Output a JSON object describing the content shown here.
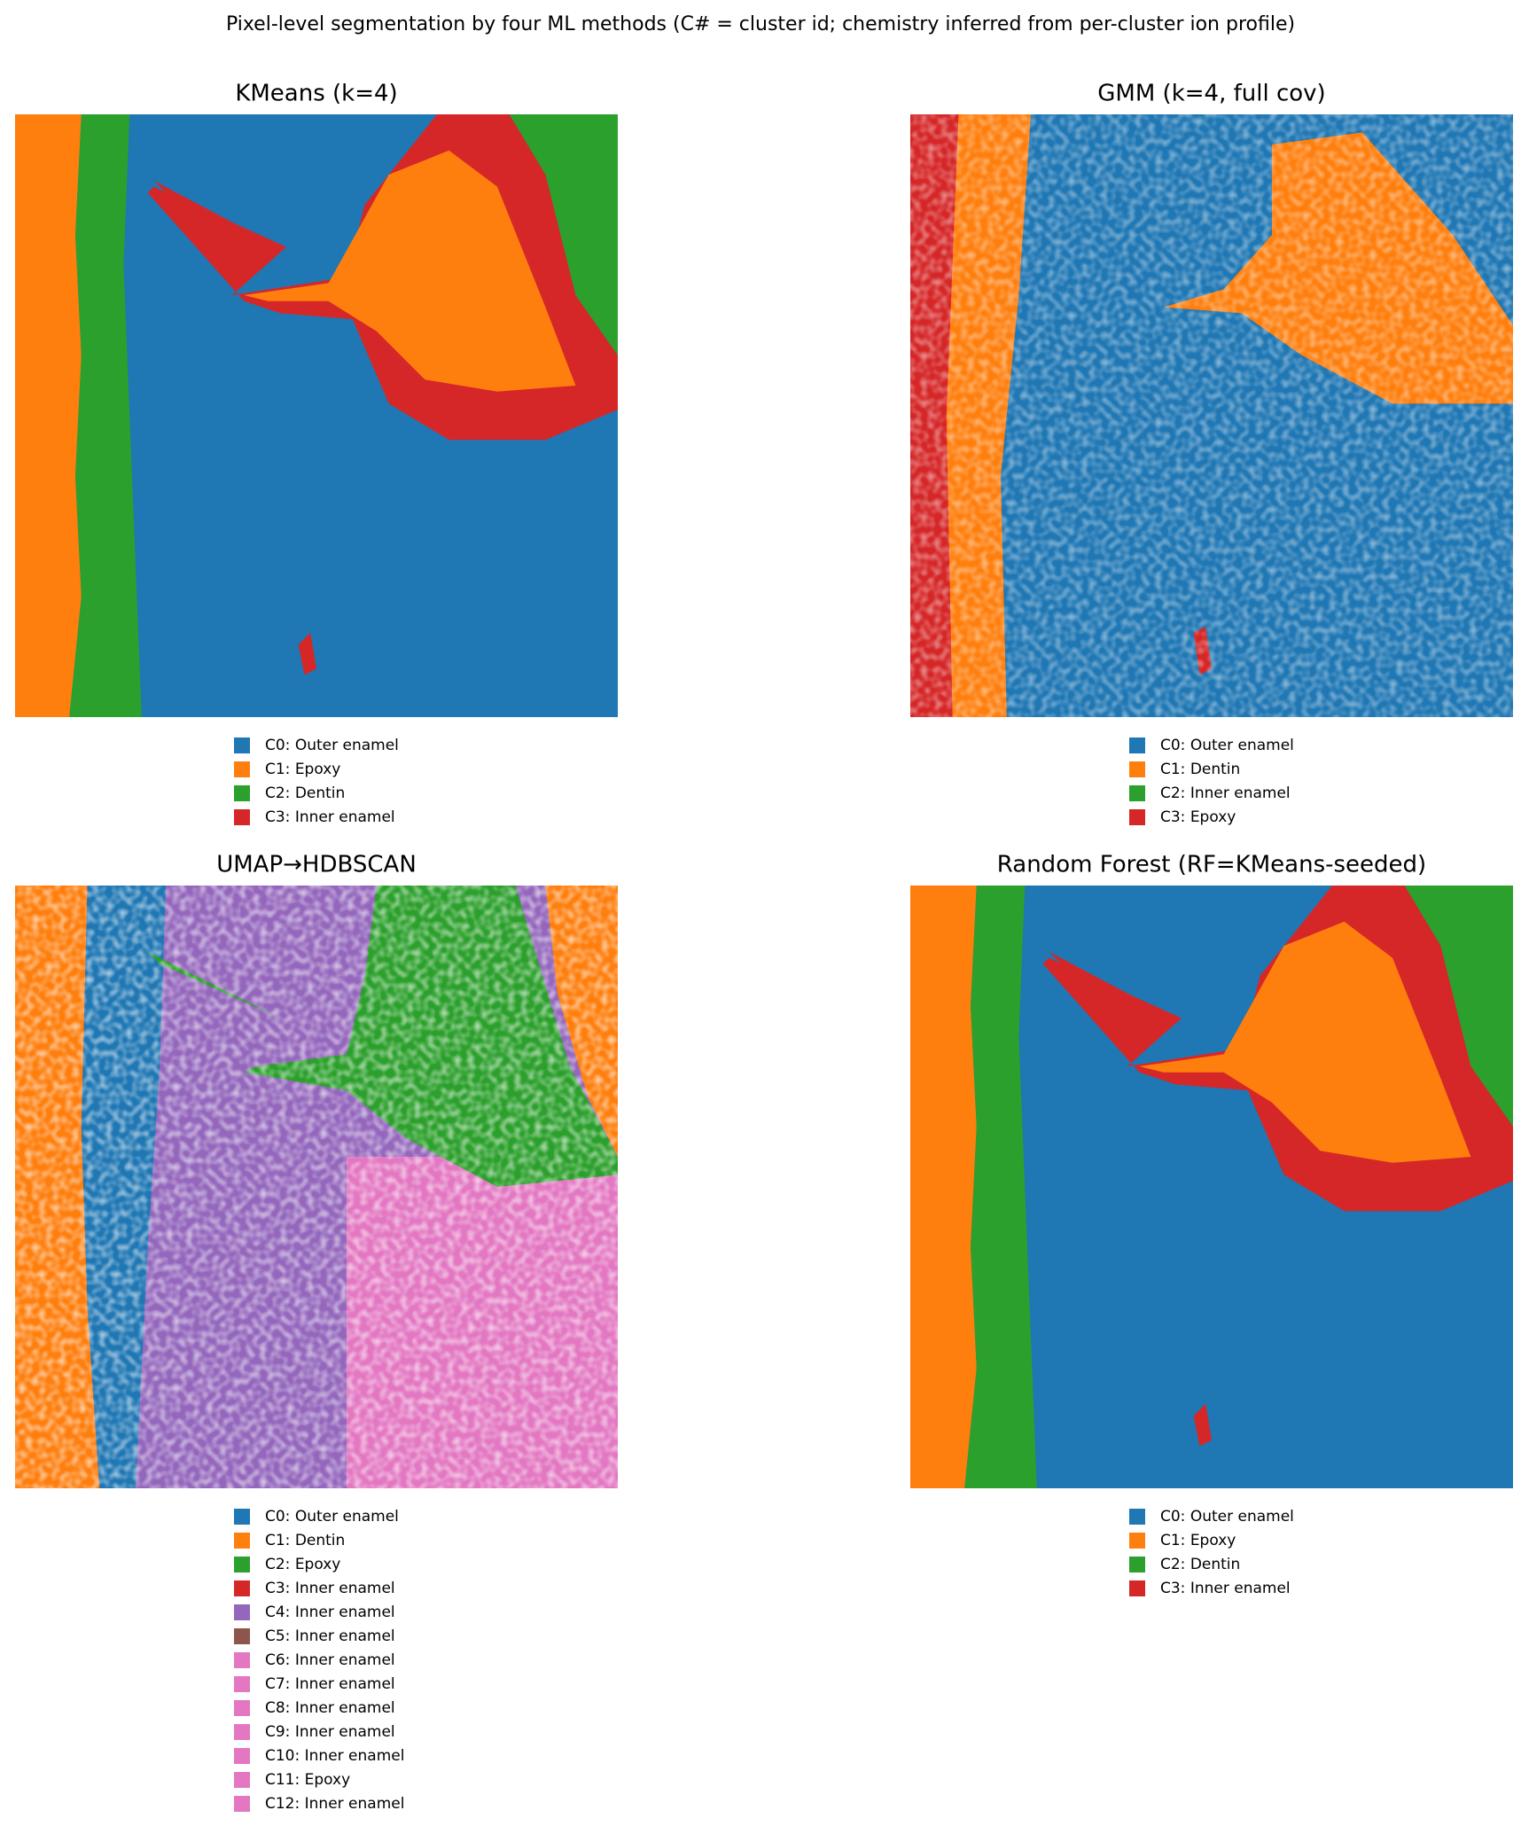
{
  "title": "Pixel-level segmentation by four ML methods (C# = cluster id; chemistry inferred from per-cluster ion profile)",
  "panels": [
    {
      "title": "KMeans (k=4)",
      "legend": [
        {
          "label": "C0: Outer enamel",
          "color": "#1f77b4"
        },
        {
          "label": "C1: Epoxy",
          "color": "#ff7f0e"
        },
        {
          "label": "C2: Dentin",
          "color": "#2ca02c"
        },
        {
          "label": "C3: Inner enamel",
          "color": "#d62728"
        }
      ]
    },
    {
      "title": "GMM (k=4, full cov)",
      "legend": [
        {
          "label": "C0: Outer enamel",
          "color": "#1f77b4"
        },
        {
          "label": "C1: Dentin",
          "color": "#ff7f0e"
        },
        {
          "label": "C2: Inner enamel",
          "color": "#2ca02c"
        },
        {
          "label": "C3: Epoxy",
          "color": "#d62728"
        }
      ]
    },
    {
      "title": "UMAP→HDBSCAN",
      "legend": [
        {
          "label": "C0: Outer enamel",
          "color": "#1f77b4"
        },
        {
          "label": "C1: Dentin",
          "color": "#ff7f0e"
        },
        {
          "label": "C2: Epoxy",
          "color": "#2ca02c"
        },
        {
          "label": "C3: Inner enamel",
          "color": "#d62728"
        },
        {
          "label": "C4: Inner enamel",
          "color": "#9467bd"
        },
        {
          "label": "C5: Inner enamel",
          "color": "#8c564b"
        },
        {
          "label": "C6: Inner enamel",
          "color": "#e377c2"
        },
        {
          "label": "C7: Inner enamel",
          "color": "#e377c2"
        },
        {
          "label": "C8: Inner enamel",
          "color": "#e377c2"
        },
        {
          "label": "C9: Inner enamel",
          "color": "#e377c2"
        },
        {
          "label": "C10: Inner enamel",
          "color": "#e377c2"
        },
        {
          "label": "C11: Epoxy",
          "color": "#e377c2"
        },
        {
          "label": "C12: Inner enamel",
          "color": "#e377c2"
        }
      ]
    },
    {
      "title": "Random Forest (RF=KMeans-seeded)",
      "legend": [
        {
          "label": "C0: Outer enamel",
          "color": "#1f77b4"
        },
        {
          "label": "C1: Epoxy",
          "color": "#ff7f0e"
        },
        {
          "label": "C2: Dentin",
          "color": "#2ca02c"
        },
        {
          "label": "C3: Inner enamel",
          "color": "#d62728"
        }
      ]
    }
  ]
}
